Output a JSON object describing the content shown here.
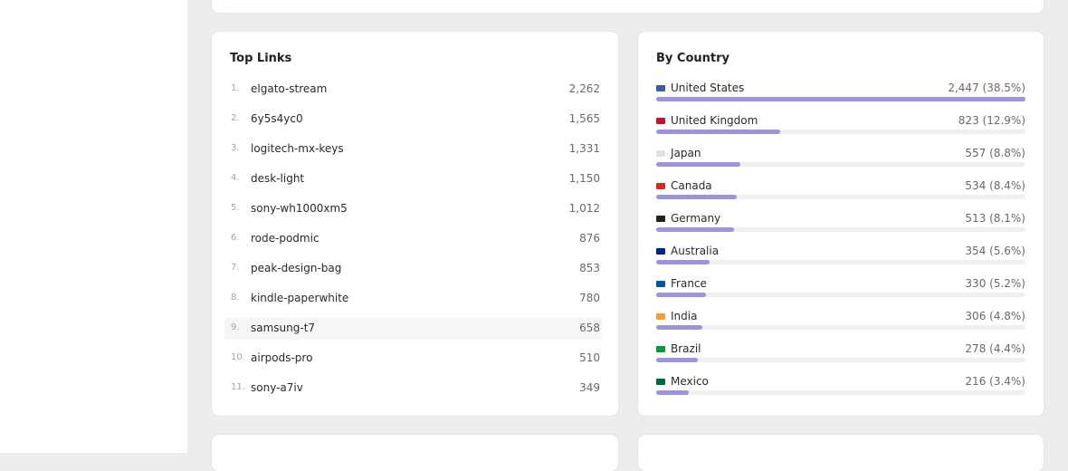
{
  "top_links": {
    "title": "Top Links",
    "rows": [
      {
        "rank": "1.",
        "name": "elgato-stream",
        "count": "2,262"
      },
      {
        "rank": "2.",
        "name": "6y5s4yc0",
        "count": "1,565"
      },
      {
        "rank": "3.",
        "name": "logitech-mx-keys",
        "count": "1,331"
      },
      {
        "rank": "4.",
        "name": "desk-light",
        "count": "1,150"
      },
      {
        "rank": "5.",
        "name": "sony-wh1000xm5",
        "count": "1,012"
      },
      {
        "rank": "6.",
        "name": "rode-podmic",
        "count": "876"
      },
      {
        "rank": "7.",
        "name": "peak-design-bag",
        "count": "853"
      },
      {
        "rank": "8.",
        "name": "kindle-paperwhite",
        "count": "780"
      },
      {
        "rank": "9.",
        "name": "samsung-t7",
        "count": "658"
      },
      {
        "rank": "10.",
        "name": "airpods-pro",
        "count": "510"
      },
      {
        "rank": "11.",
        "name": "sony-a7iv",
        "count": "349"
      }
    ]
  },
  "by_country": {
    "title": "By Country",
    "rows": [
      {
        "country": "United States",
        "visits": {
          "value": 2447,
          "label": "2,447 (38.5%)"
        }
      },
      {
        "country": "United Kingdom",
        "visits": {
          "value": 823,
          "label": "823 (12.9%)"
        }
      },
      {
        "country": "Japan",
        "visits": {
          "value": 557,
          "label": "557 (8.8%)"
        }
      },
      {
        "country": "Canada",
        "visits": {
          "value": 534,
          "label": "534 (8.4%)"
        }
      },
      {
        "country": "Germany",
        "visits": {
          "value": 513,
          "label": "513 (8.1%)"
        }
      },
      {
        "country": "Australia",
        "visits": {
          "value": 354,
          "label": "354 (5.6%)"
        }
      },
      {
        "country": "France",
        "visits": {
          "value": 330,
          "label": "330 (5.2%)"
        }
      },
      {
        "country": "India",
        "visits": {
          "value": 306,
          "label": "306 (4.8%)"
        }
      },
      {
        "country": "Brazil",
        "visits": {
          "value": 278,
          "label": "278 (4.4%)"
        }
      },
      {
        "country": "Mexico",
        "visits": {
          "value": 216,
          "label": "216 (3.4%)"
        }
      }
    ]
  }
}
